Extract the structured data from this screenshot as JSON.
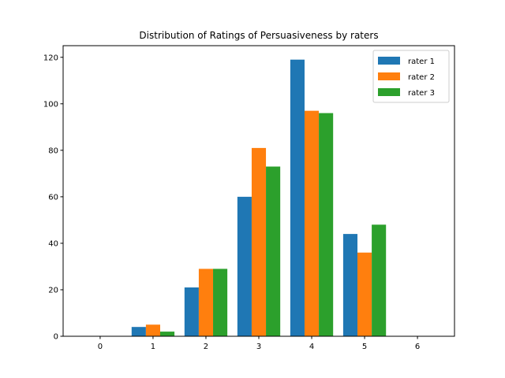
{
  "chart_data": {
    "type": "bar",
    "title": "Distribution of Ratings of Persuasiveness by raters",
    "xlabel": "",
    "ylabel": "",
    "x_ticks": [
      "0",
      "1",
      "2",
      "3",
      "4",
      "5",
      "6"
    ],
    "categories": [
      1,
      2,
      3,
      4,
      5
    ],
    "series": [
      {
        "name": "rater 1",
        "color": "#1f77b4",
        "values": [
          4,
          21,
          60,
          119,
          44
        ]
      },
      {
        "name": "rater 2",
        "color": "#ff7f0e",
        "values": [
          5,
          29,
          81,
          97,
          36
        ]
      },
      {
        "name": "rater 3",
        "color": "#2ca02c",
        "values": [
          2,
          29,
          73,
          96,
          48
        ]
      }
    ],
    "xlim": [
      -0.7,
      6.7
    ],
    "ylim": [
      0,
      125
    ],
    "y_ticks": [
      0,
      20,
      40,
      60,
      80,
      100,
      120
    ],
    "grid": false,
    "legend_position": "top-right"
  }
}
